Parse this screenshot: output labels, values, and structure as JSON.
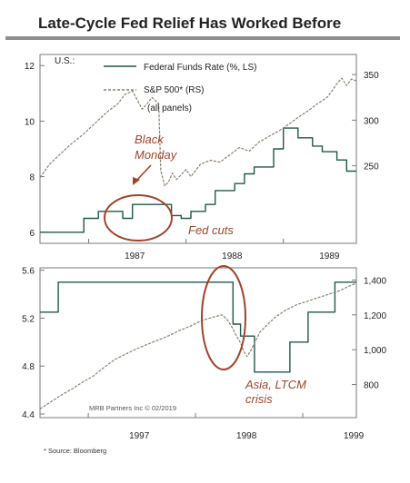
{
  "title": "Late-Cycle Fed Relief Has Worked Before",
  "footnote": "* Source: Bloomberg",
  "colors": {
    "ffr": "#1f5a48",
    "sp500": "#8b7f6e",
    "annotation": "#a0442a",
    "frame": "#7a7a7a"
  },
  "chart_data": [
    {
      "type": "line",
      "country_label": "U.S.:",
      "legend": {
        "ffr": "Federal Funds Rate (%, LS)",
        "sp500": "S&P 500* (RS)",
        "note": "(all panels)"
      },
      "x_ticks": [
        "1987",
        "1988",
        "1989"
      ],
      "x_range": [
        1986.5,
        1989.75
      ],
      "y_left": {
        "range": [
          5.6,
          12.4
        ],
        "ticks": [
          "6",
          "8",
          "10",
          "12"
        ]
      },
      "y_right": {
        "range": [
          165,
          372
        ],
        "ticks": [
          "250",
          "300",
          "350"
        ]
      },
      "annotations": [
        {
          "text": "Black",
          "text2": "Monday"
        },
        {
          "text": "Fed cuts"
        }
      ],
      "series": [
        {
          "name": "Federal Funds Rate (%, LS)",
          "axis": "left",
          "style": "step",
          "points": [
            [
              1986.5,
              6.0
            ],
            [
              1986.95,
              6.0
            ],
            [
              1986.95,
              6.5
            ],
            [
              1987.1,
              6.5
            ],
            [
              1987.1,
              6.75
            ],
            [
              1987.35,
              6.75
            ],
            [
              1987.35,
              6.5
            ],
            [
              1987.45,
              6.5
            ],
            [
              1987.45,
              7.0
            ],
            [
              1987.85,
              7.0
            ],
            [
              1987.85,
              6.6
            ],
            [
              1987.95,
              6.6
            ],
            [
              1987.95,
              6.5
            ],
            [
              1988.05,
              6.5
            ],
            [
              1988.05,
              6.75
            ],
            [
              1988.2,
              6.75
            ],
            [
              1988.2,
              7.0
            ],
            [
              1988.3,
              7.0
            ],
            [
              1988.3,
              7.5
            ],
            [
              1988.5,
              7.5
            ],
            [
              1988.5,
              7.75
            ],
            [
              1988.6,
              7.75
            ],
            [
              1988.6,
              8.1
            ],
            [
              1988.7,
              8.1
            ],
            [
              1988.7,
              8.35
            ],
            [
              1988.9,
              8.35
            ],
            [
              1988.9,
              9.0
            ],
            [
              1989.0,
              9.0
            ],
            [
              1989.0,
              9.75
            ],
            [
              1989.15,
              9.75
            ],
            [
              1989.15,
              9.4
            ],
            [
              1989.3,
              9.4
            ],
            [
              1989.3,
              9.1
            ],
            [
              1989.4,
              9.1
            ],
            [
              1989.4,
              8.9
            ],
            [
              1989.55,
              8.9
            ],
            [
              1989.55,
              8.6
            ],
            [
              1989.65,
              8.6
            ],
            [
              1989.65,
              8.2
            ],
            [
              1989.75,
              8.2
            ]
          ]
        },
        {
          "name": "S&P 500* (RS)",
          "axis": "right",
          "style": "dashed",
          "points": [
            [
              1986.5,
              237
            ],
            [
              1986.6,
              252
            ],
            [
              1986.7,
              262
            ],
            [
              1986.8,
              272
            ],
            [
              1986.95,
              285
            ],
            [
              1987.1,
              300
            ],
            [
              1987.2,
              310
            ],
            [
              1987.3,
              318
            ],
            [
              1987.37,
              328
            ],
            [
              1987.45,
              332
            ],
            [
              1987.5,
              322
            ],
            [
              1987.55,
              312
            ],
            [
              1987.6,
              318
            ],
            [
              1987.65,
              325
            ],
            [
              1987.7,
              320
            ],
            [
              1987.72,
              318
            ],
            [
              1987.74,
              245
            ],
            [
              1987.78,
              228
            ],
            [
              1987.82,
              232
            ],
            [
              1987.86,
              242
            ],
            [
              1987.9,
              235
            ],
            [
              1987.95,
              240
            ],
            [
              1988.0,
              246
            ],
            [
              1988.05,
              238
            ],
            [
              1988.15,
              252
            ],
            [
              1988.25,
              256
            ],
            [
              1988.35,
              254
            ],
            [
              1988.45,
              262
            ],
            [
              1988.55,
              270
            ],
            [
              1988.65,
              266
            ],
            [
              1988.75,
              276
            ],
            [
              1988.85,
              282
            ],
            [
              1988.95,
              288
            ],
            [
              1989.05,
              295
            ],
            [
              1989.15,
              303
            ],
            [
              1989.25,
              310
            ],
            [
              1989.35,
              318
            ],
            [
              1989.45,
              325
            ],
            [
              1989.5,
              332
            ],
            [
              1989.55,
              340
            ],
            [
              1989.6,
              346
            ],
            [
              1989.65,
              338
            ],
            [
              1989.7,
              345
            ],
            [
              1989.75,
              343
            ]
          ]
        }
      ]
    },
    {
      "type": "line",
      "x_ticks": [
        "1997",
        "1998",
        "1999"
      ],
      "x_range": [
        1996.55,
        1999.5
      ],
      "credit": "MRB Partners Inc © 02/2019",
      "y_left": {
        "range": [
          4.37,
          5.62
        ],
        "ticks": [
          "4.4",
          "4.8",
          "5.2",
          "5.6"
        ]
      },
      "y_right": {
        "range": [
          610,
          1470
        ],
        "ticks": [
          "800",
          "1,000",
          "1,200",
          "1,400"
        ]
      },
      "annotations": [
        {
          "text": "Asia, LTCM",
          "text2": "crisis"
        }
      ],
      "series": [
        {
          "name": "Federal Funds Rate (%, LS)",
          "axis": "left",
          "style": "step",
          "points": [
            [
              1996.55,
              5.25
            ],
            [
              1996.72,
              5.25
            ],
            [
              1996.72,
              5.5
            ],
            [
              1998.35,
              5.5
            ],
            [
              1998.35,
              5.15
            ],
            [
              1998.42,
              5.15
            ],
            [
              1998.42,
              5.05
            ],
            [
              1998.55,
              5.05
            ],
            [
              1998.55,
              4.75
            ],
            [
              1998.88,
              4.75
            ],
            [
              1998.88,
              5.0
            ],
            [
              1999.05,
              5.0
            ],
            [
              1999.05,
              5.25
            ],
            [
              1999.3,
              5.25
            ],
            [
              1999.3,
              5.5
            ],
            [
              1999.5,
              5.5
            ]
          ]
        },
        {
          "name": "S&P 500* (RS)",
          "axis": "right",
          "style": "dashed",
          "points": [
            [
              1996.55,
              660
            ],
            [
              1996.65,
              700
            ],
            [
              1996.75,
              740
            ],
            [
              1996.85,
              775
            ],
            [
              1996.95,
              815
            ],
            [
              1997.05,
              850
            ],
            [
              1997.15,
              900
            ],
            [
              1997.25,
              945
            ],
            [
              1997.35,
              975
            ],
            [
              1997.45,
              1005
            ],
            [
              1997.55,
              1030
            ],
            [
              1997.65,
              1055
            ],
            [
              1997.75,
              1080
            ],
            [
              1997.85,
              1110
            ],
            [
              1997.95,
              1135
            ],
            [
              1998.05,
              1165
            ],
            [
              1998.15,
              1185
            ],
            [
              1998.25,
              1200
            ],
            [
              1998.3,
              1170
            ],
            [
              1998.35,
              1120
            ],
            [
              1998.38,
              1080
            ],
            [
              1998.42,
              1040
            ],
            [
              1998.45,
              990
            ],
            [
              1998.48,
              960
            ],
            [
              1998.52,
              1000
            ],
            [
              1998.56,
              1050
            ],
            [
              1998.6,
              1100
            ],
            [
              1998.68,
              1150
            ],
            [
              1998.75,
              1190
            ],
            [
              1998.85,
              1230
            ],
            [
              1998.95,
              1260
            ],
            [
              1999.05,
              1280
            ],
            [
              1999.15,
              1300
            ],
            [
              1999.25,
              1320
            ],
            [
              1999.35,
              1340
            ],
            [
              1999.45,
              1370
            ],
            [
              1999.5,
              1380
            ]
          ]
        }
      ]
    }
  ]
}
